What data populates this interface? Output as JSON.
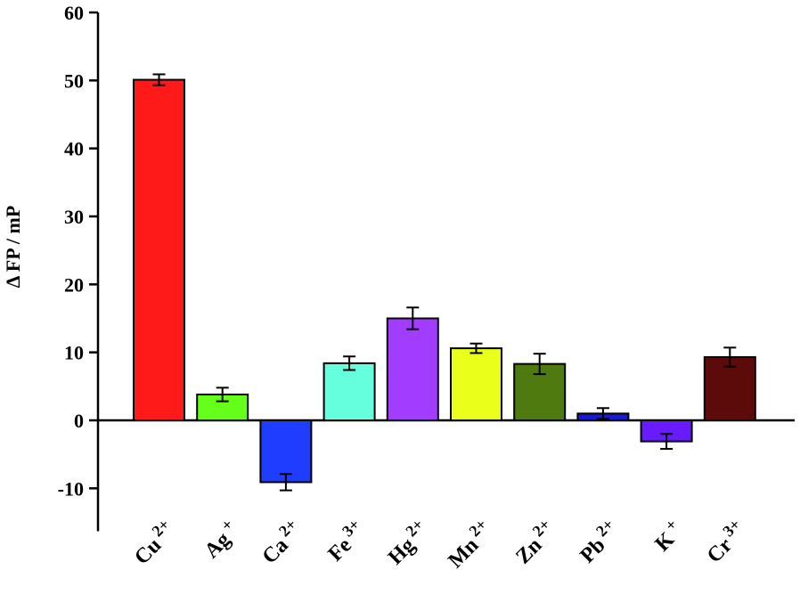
{
  "chart_data": {
    "type": "bar",
    "ylabel": "Δ FP / mP",
    "xlabel": "",
    "ylim": [
      -15,
      60
    ],
    "yticks": [
      60,
      50,
      40,
      30,
      20,
      10,
      0,
      -10
    ],
    "categories": [
      {
        "base": "Cu",
        "charge": "2+"
      },
      {
        "base": "Ag",
        "charge": "+"
      },
      {
        "base": "Ca",
        "charge": "2+"
      },
      {
        "base": "Fe",
        "charge": "3+"
      },
      {
        "base": "Hg",
        "charge": "2+"
      },
      {
        "base": "Mn",
        "charge": "2+"
      },
      {
        "base": "Zn",
        "charge": "2+"
      },
      {
        "base": "Pb",
        "charge": "2+"
      },
      {
        "base": "K",
        "charge": "+"
      },
      {
        "base": "Cr",
        "charge": "3+"
      }
    ],
    "values": [
      50.1,
      3.8,
      -9.1,
      8.4,
      15.0,
      10.6,
      8.3,
      1.0,
      -3.1,
      9.3
    ],
    "errors": [
      0.8,
      1.0,
      1.2,
      1.0,
      1.6,
      0.7,
      1.5,
      0.8,
      1.1,
      1.4
    ],
    "colors": [
      "#ff1a1a",
      "#66ff1a",
      "#1f3dff",
      "#66ffdd",
      "#a23cff",
      "#eaff1a",
      "#4e7a10",
      "#1a1acc",
      "#6a1aff",
      "#5c0a0a"
    ],
    "grid": false
  }
}
